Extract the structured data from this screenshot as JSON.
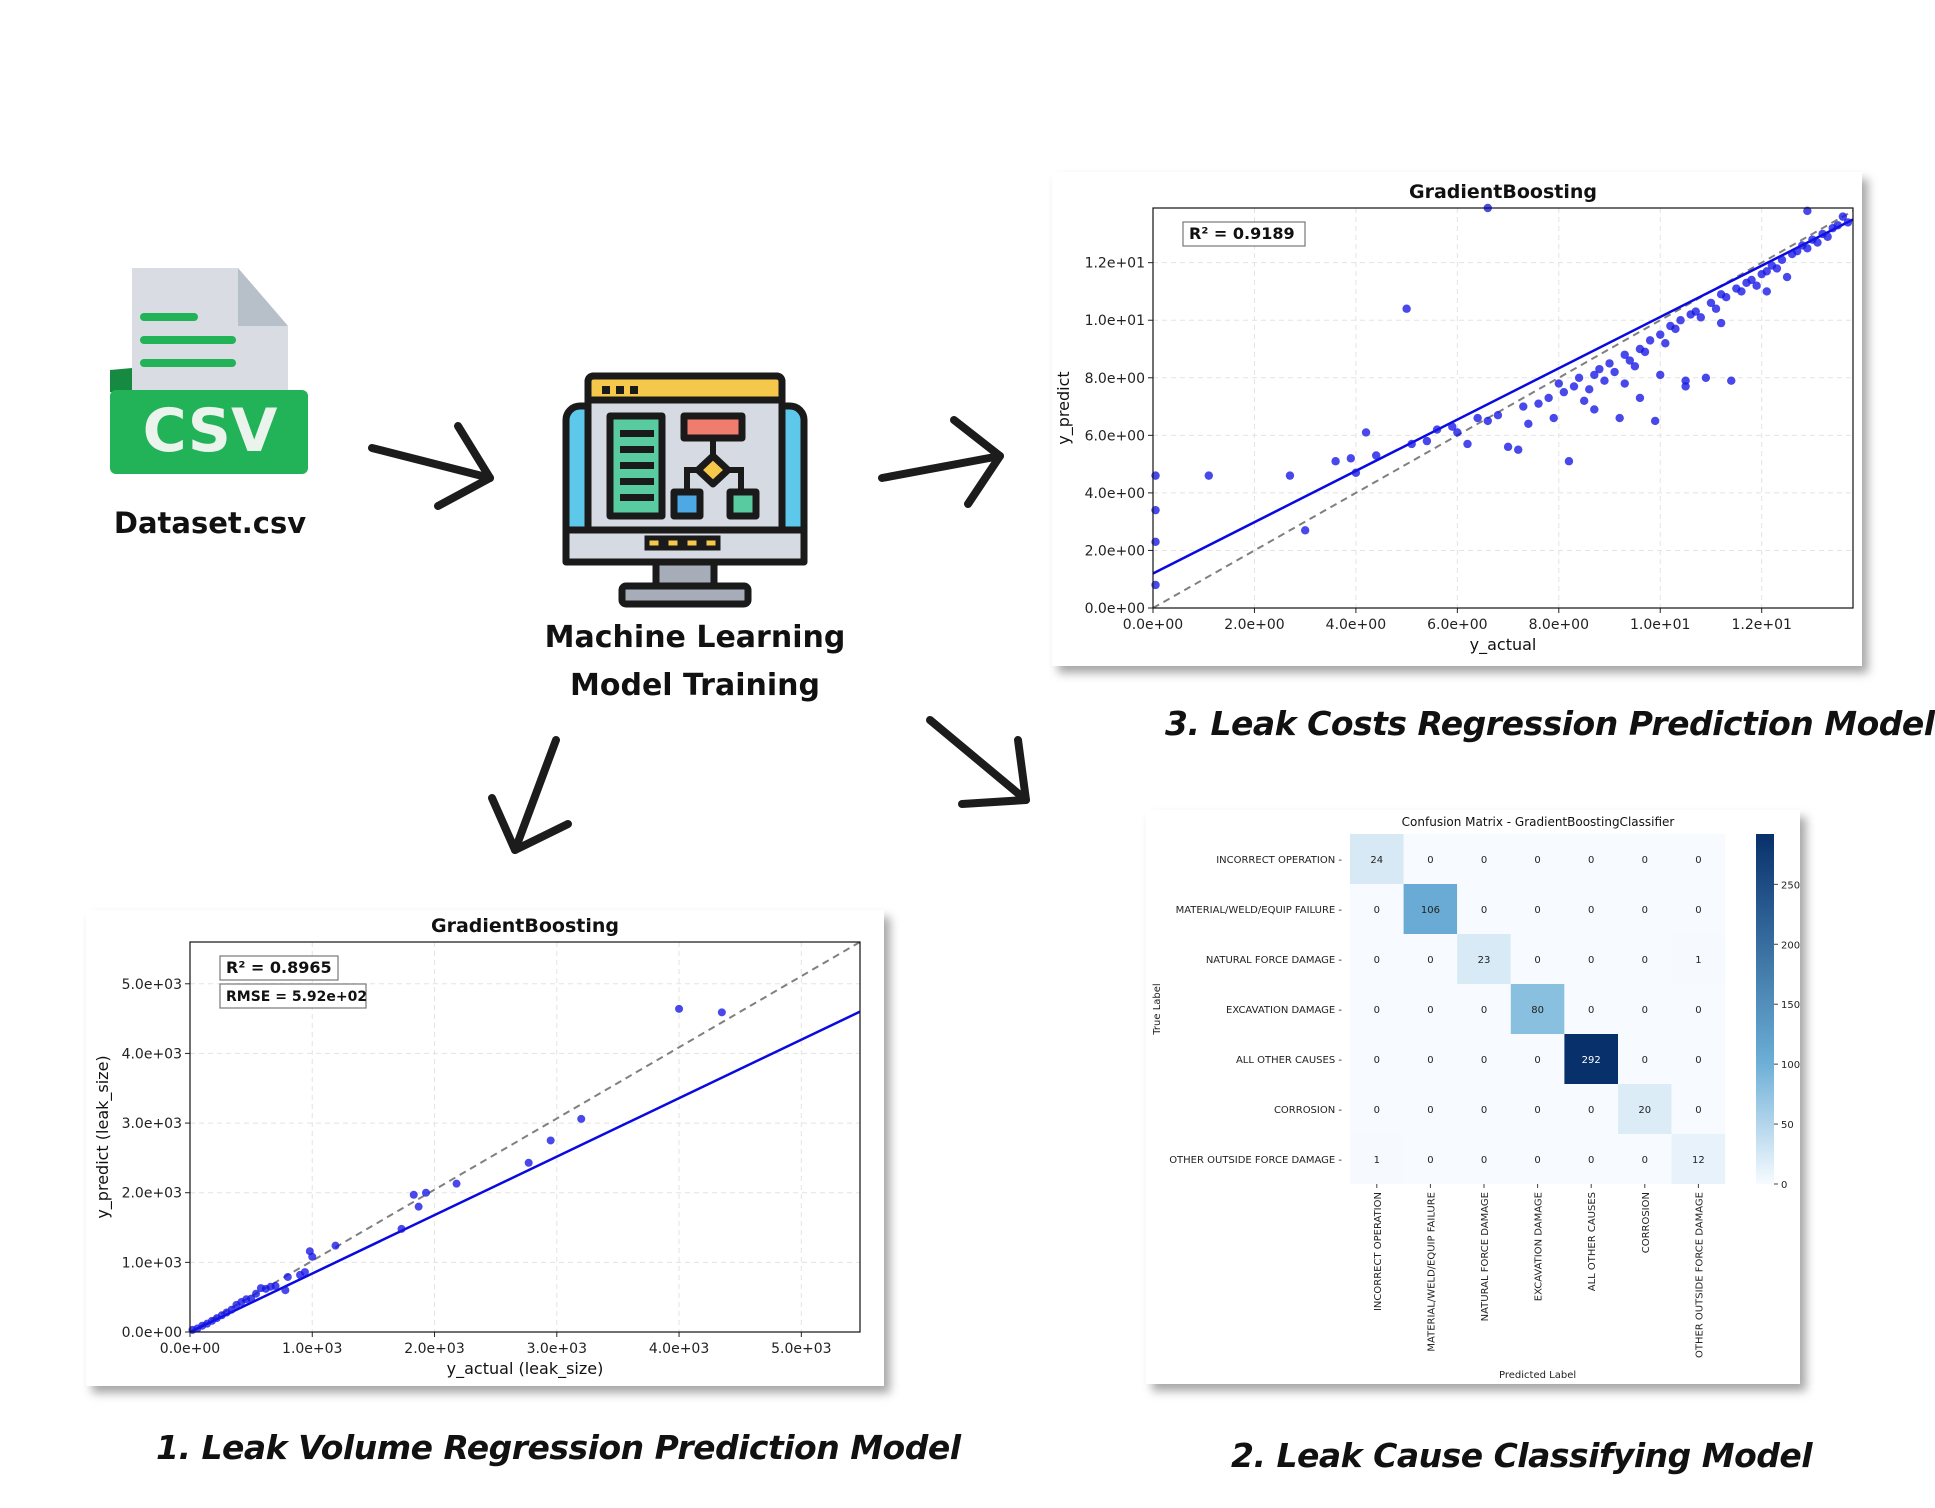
{
  "csv": {
    "badge": "CSV",
    "label": "Dataset.csv"
  },
  "training": {
    "line1": "Machine Learning",
    "line2": "Model Training"
  },
  "captions": {
    "volume": "1. Leak Volume Regression Prediction Model",
    "cause": "2. Leak Cause Classifying Model",
    "costs": "3. Leak Costs Regression Prediction Model"
  },
  "colors": {
    "points": "#1414e6",
    "fit": "#0a0ae0",
    "identity": "#808080",
    "csv_green": "#22b257",
    "heat_dark": "#0b3c80"
  },
  "chart_data": [
    {
      "id": "costs",
      "type": "scatter",
      "title": "GradientBoosting",
      "xlabel": "y_actual",
      "ylabel": "y_predict",
      "xlim": [
        0,
        13.8
      ],
      "ylim": [
        0,
        13.9
      ],
      "xticks": [
        0,
        2,
        4,
        6,
        8,
        10,
        12
      ],
      "xtick_labels": [
        "0.0e+00",
        "2.0e+00",
        "4.0e+00",
        "6.0e+00",
        "8.0e+00",
        "1.0e+01",
        "1.2e+01"
      ],
      "yticks": [
        0,
        2,
        4,
        6,
        8,
        10,
        12
      ],
      "ytick_labels": [
        "0.0e+00",
        "2.0e+00",
        "4.0e+00",
        "6.0e+00",
        "8.0e+00",
        "1.0e+01",
        "1.2e+01"
      ],
      "annotations": [
        "R² = 0.9189"
      ],
      "grid": true,
      "fit_line": [
        [
          0,
          1.2
        ],
        [
          13.8,
          13.5
        ]
      ],
      "identity_line": [
        [
          0,
          0
        ],
        [
          13.8,
          13.8
        ]
      ],
      "points": [
        [
          0.05,
          4.6
        ],
        [
          0.05,
          3.4
        ],
        [
          0.05,
          2.3
        ],
        [
          0.05,
          0.8
        ],
        [
          1.1,
          4.6
        ],
        [
          2.7,
          4.6
        ],
        [
          3.0,
          2.7
        ],
        [
          3.6,
          5.1
        ],
        [
          3.9,
          5.2
        ],
        [
          4.0,
          4.7
        ],
        [
          4.2,
          6.1
        ],
        [
          4.4,
          5.3
        ],
        [
          5.0,
          10.4
        ],
        [
          5.1,
          5.7
        ],
        [
          5.4,
          5.8
        ],
        [
          5.6,
          6.2
        ],
        [
          5.9,
          6.3
        ],
        [
          6.0,
          6.1
        ],
        [
          6.2,
          5.7
        ],
        [
          6.4,
          6.6
        ],
        [
          6.6,
          6.5
        ],
        [
          6.8,
          6.7
        ],
        [
          7.0,
          5.6
        ],
        [
          7.2,
          5.5
        ],
        [
          7.3,
          7.0
        ],
        [
          7.4,
          6.4
        ],
        [
          7.6,
          7.1
        ],
        [
          7.8,
          7.3
        ],
        [
          7.9,
          6.6
        ],
        [
          8.0,
          7.8
        ],
        [
          8.1,
          7.5
        ],
        [
          8.2,
          5.1
        ],
        [
          8.3,
          7.7
        ],
        [
          8.4,
          8.0
        ],
        [
          8.5,
          7.2
        ],
        [
          8.6,
          7.6
        ],
        [
          8.7,
          8.1
        ],
        [
          8.8,
          8.3
        ],
        [
          8.9,
          7.9
        ],
        [
          9.0,
          8.5
        ],
        [
          9.1,
          8.2
        ],
        [
          9.2,
          6.6
        ],
        [
          9.3,
          8.8
        ],
        [
          9.4,
          8.6
        ],
        [
          9.5,
          8.4
        ],
        [
          9.6,
          9.0
        ],
        [
          9.7,
          8.9
        ],
        [
          9.8,
          9.3
        ],
        [
          9.9,
          6.5
        ],
        [
          10.0,
          9.5
        ],
        [
          10.1,
          9.2
        ],
        [
          10.2,
          9.8
        ],
        [
          10.3,
          9.7
        ],
        [
          10.4,
          10.0
        ],
        [
          10.5,
          7.9
        ],
        [
          10.6,
          10.2
        ],
        [
          10.7,
          10.3
        ],
        [
          10.8,
          10.1
        ],
        [
          10.9,
          8.0
        ],
        [
          11.0,
          10.6
        ],
        [
          11.1,
          10.4
        ],
        [
          11.2,
          10.9
        ],
        [
          11.3,
          10.8
        ],
        [
          11.4,
          7.9
        ],
        [
          11.5,
          11.1
        ],
        [
          11.6,
          11.0
        ],
        [
          11.7,
          11.3
        ],
        [
          11.8,
          11.4
        ],
        [
          11.9,
          11.2
        ],
        [
          12.0,
          11.6
        ],
        [
          12.1,
          11.7
        ],
        [
          12.2,
          11.9
        ],
        [
          12.3,
          11.8
        ],
        [
          12.4,
          12.1
        ],
        [
          12.5,
          11.5
        ],
        [
          12.6,
          12.3
        ],
        [
          12.7,
          12.4
        ],
        [
          12.8,
          12.6
        ],
        [
          12.9,
          12.5
        ],
        [
          13.0,
          12.8
        ],
        [
          13.1,
          12.7
        ],
        [
          13.2,
          13.0
        ],
        [
          13.3,
          12.9
        ],
        [
          13.4,
          13.2
        ],
        [
          13.5,
          13.3
        ],
        [
          13.6,
          13.6
        ],
        [
          13.7,
          13.4
        ],
        [
          6.6,
          13.9
        ],
        [
          12.9,
          13.8
        ],
        [
          10.5,
          7.7
        ],
        [
          12.1,
          11.0
        ],
        [
          9.6,
          7.3
        ],
        [
          8.7,
          6.9
        ],
        [
          10.0,
          8.1
        ],
        [
          11.2,
          9.9
        ],
        [
          9.3,
          7.8
        ]
      ]
    },
    {
      "id": "volume",
      "type": "scatter",
      "title": "GradientBoosting",
      "xlabel": "y_actual (leak_size)",
      "ylabel": "y_predict (leak_size)",
      "xlim": [
        0,
        5480
      ],
      "ylim": [
        0,
        5600
      ],
      "xticks": [
        0,
        1000,
        2000,
        3000,
        4000,
        5000
      ],
      "xtick_labels": [
        "0.0e+00",
        "1.0e+03",
        "2.0e+03",
        "3.0e+03",
        "4.0e+03",
        "5.0e+03"
      ],
      "yticks": [
        0,
        1000,
        2000,
        3000,
        4000,
        5000
      ],
      "ytick_labels": [
        "0.0e+00",
        "1.0e+03",
        "2.0e+03",
        "3.0e+03",
        "4.0e+03",
        "5.0e+03"
      ],
      "annotations": [
        "R² = 0.8965",
        "RMSE = 5.92e+02"
      ],
      "grid": true,
      "fit_line": [
        [
          0,
          0
        ],
        [
          5480,
          4600
        ]
      ],
      "identity_line": [
        [
          0,
          0
        ],
        [
          5480,
          5600
        ]
      ],
      "points": [
        [
          20,
          30
        ],
        [
          60,
          50
        ],
        [
          100,
          90
        ],
        [
          140,
          120
        ],
        [
          180,
          160
        ],
        [
          220,
          200
        ],
        [
          260,
          240
        ],
        [
          300,
          280
        ],
        [
          340,
          320
        ],
        [
          380,
          390
        ],
        [
          420,
          430
        ],
        [
          460,
          470
        ],
        [
          500,
          480
        ],
        [
          540,
          550
        ],
        [
          580,
          630
        ],
        [
          620,
          620
        ],
        [
          660,
          650
        ],
        [
          700,
          660
        ],
        [
          780,
          600
        ],
        [
          800,
          790
        ],
        [
          900,
          820
        ],
        [
          940,
          860
        ],
        [
          980,
          1160
        ],
        [
          1000,
          1080
        ],
        [
          1190,
          1240
        ],
        [
          1730,
          1480
        ],
        [
          1830,
          1970
        ],
        [
          1870,
          1800
        ],
        [
          1930,
          2000
        ],
        [
          2180,
          2130
        ],
        [
          2770,
          2430
        ],
        [
          2950,
          2750
        ],
        [
          3200,
          3060
        ],
        [
          4000,
          4640
        ],
        [
          4350,
          4590
        ]
      ]
    },
    {
      "id": "cause",
      "type": "heatmap",
      "title": "Confusion Matrix - GradientBoostingClassifier",
      "xlabel": "Predicted Label",
      "ylabel": "True Label",
      "categories": [
        "INCORRECT OPERATION",
        "MATERIAL/WELD/EQUIP FAILURE",
        "NATURAL FORCE DAMAGE",
        "EXCAVATION DAMAGE",
        "ALL OTHER CAUSES",
        "CORROSION",
        "OTHER OUTSIDE FORCE DAMAGE"
      ],
      "values": [
        [
          24,
          0,
          0,
          0,
          0,
          0,
          0
        ],
        [
          0,
          106,
          0,
          0,
          0,
          0,
          0
        ],
        [
          0,
          0,
          23,
          0,
          0,
          0,
          1
        ],
        [
          0,
          0,
          0,
          80,
          0,
          0,
          0
        ],
        [
          0,
          0,
          0,
          0,
          292,
          0,
          0
        ],
        [
          0,
          0,
          0,
          0,
          0,
          20,
          0
        ],
        [
          1,
          0,
          0,
          0,
          0,
          0,
          12
        ]
      ],
      "colorbar_ticks": [
        0,
        50,
        100,
        150,
        200,
        250
      ],
      "colorbar_tick_labels": [
        "0",
        "50",
        "100",
        "150",
        "200",
        "250"
      ],
      "vmax": 292
    }
  ]
}
